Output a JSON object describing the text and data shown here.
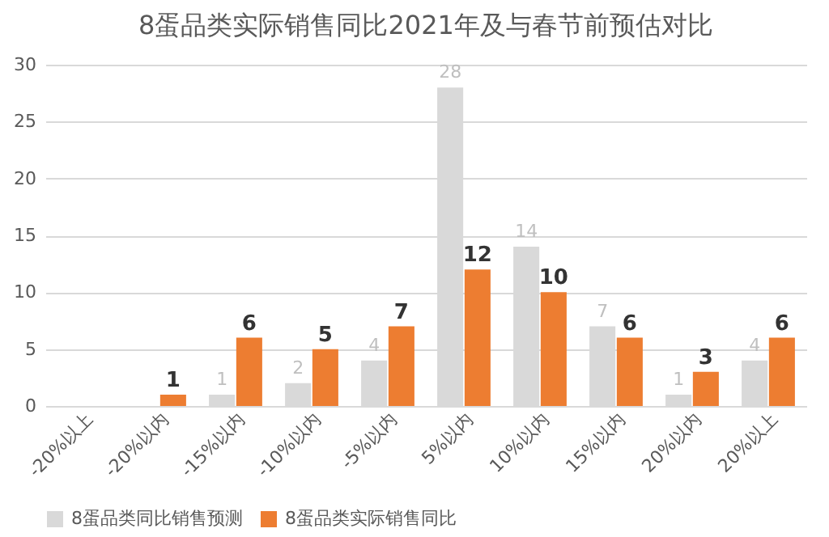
{
  "chart_data": {
    "type": "bar",
    "title": "8蛋品类实际销售同比2021年及与春节前预估对比",
    "categories": [
      "-20%以上",
      "-20%以内",
      "-15%以内",
      "-10%以内",
      "-5%以内",
      "5%以内",
      "10%以内",
      "15%以内",
      "20%以内",
      "20%以上"
    ],
    "series": [
      {
        "name": "8蛋品类同比销售预测",
        "color": "#d9d9d9",
        "values": [
          null,
          null,
          1,
          2,
          4,
          28,
          14,
          7,
          1,
          4
        ],
        "value_labels": [
          null,
          null,
          "1",
          "2",
          "4",
          "28",
          "14",
          "7",
          "1",
          "4"
        ]
      },
      {
        "name": "8蛋品类实际销售同比",
        "color": "#ed7d31",
        "values": [
          null,
          1,
          6,
          5,
          7,
          12,
          10,
          6,
          3,
          6
        ],
        "value_labels": [
          null,
          "1",
          "6",
          "5",
          "7",
          "12",
          "10",
          "6",
          "3",
          "6"
        ]
      }
    ],
    "ylim": [
      0,
      30
    ],
    "yticks": [
      0,
      5,
      10,
      15,
      20,
      25,
      30
    ],
    "grid": "y",
    "legend": "bottom"
  }
}
